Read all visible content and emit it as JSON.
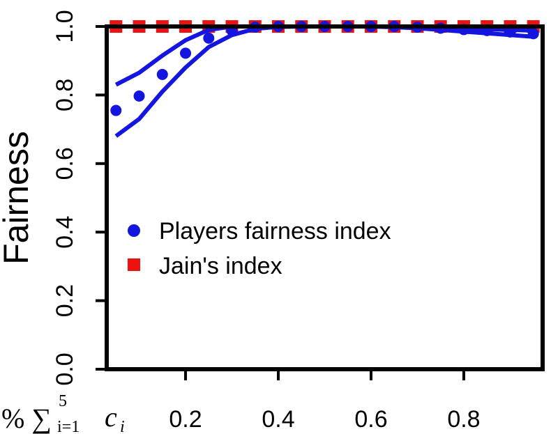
{
  "chart_data": {
    "type": "scatter",
    "title": "",
    "ylabel": "Fairness",
    "xlabel": "% ∑",
    "xlabel_sub": "i=1",
    "xlabel_sup": "5",
    "xlabel_var": "c",
    "xlabel_var_sub": "i",
    "xlim": [
      0.03,
      0.97
    ],
    "ylim": [
      0.0,
      1.0
    ],
    "x_ticks": [
      0.2,
      0.4,
      0.6,
      0.8
    ],
    "x_tick_labels": [
      "0.2",
      "0.4",
      "0.6",
      "0.8"
    ],
    "y_ticks": [
      0.0,
      0.2,
      0.4,
      0.6,
      0.8,
      1.0
    ],
    "y_tick_labels": [
      "0.0",
      "0.2",
      "0.4",
      "0.6",
      "0.8",
      "1.0"
    ],
    "legend_position": "middle-left",
    "colors": {
      "players": "#1515e0",
      "jain": "#ee1111"
    },
    "series": [
      {
        "name": "Players fairness index",
        "marker": "circle",
        "x": [
          0.05,
          0.1,
          0.15,
          0.2,
          0.25,
          0.3,
          0.35,
          0.4,
          0.45,
          0.5,
          0.55,
          0.6,
          0.65,
          0.7,
          0.75,
          0.8,
          0.85,
          0.9,
          0.95
        ],
        "y": [
          0.755,
          0.797,
          0.86,
          0.922,
          0.966,
          0.988,
          0.998,
          1.0,
          1.0,
          1.0,
          1.0,
          1.0,
          1.0,
          0.998,
          0.995,
          0.991,
          0.988,
          0.984,
          0.979
        ]
      },
      {
        "name": "Jain's index",
        "marker": "square",
        "x": [
          0.05,
          0.1,
          0.15,
          0.2,
          0.25,
          0.3,
          0.35,
          0.4,
          0.45,
          0.5,
          0.55,
          0.6,
          0.65,
          0.7,
          0.75,
          0.8,
          0.85,
          0.9,
          0.95
        ],
        "y": [
          1.0,
          1.0,
          1.0,
          1.0,
          1.0,
          1.0,
          1.0,
          1.0,
          1.0,
          1.0,
          1.0,
          1.0,
          1.0,
          1.0,
          1.0,
          1.0,
          1.0,
          1.0,
          1.0
        ]
      }
    ],
    "bands": [
      {
        "of": "Players fairness index",
        "bound": "upper",
        "x": [
          0.05,
          0.1,
          0.15,
          0.2,
          0.25,
          0.3,
          0.35,
          0.4,
          0.45,
          0.5,
          0.55,
          0.6,
          0.65,
          0.7,
          0.75,
          0.8,
          0.85,
          0.9,
          0.95
        ],
        "y": [
          0.83,
          0.865,
          0.915,
          0.96,
          0.99,
          1.0,
          1.0,
          1.0,
          1.0,
          1.0,
          1.0,
          1.0,
          1.0,
          1.0,
          0.998,
          0.995,
          0.992,
          0.99,
          0.988
        ]
      },
      {
        "of": "Players fairness index",
        "bound": "lower",
        "x": [
          0.05,
          0.1,
          0.15,
          0.2,
          0.25,
          0.3,
          0.35,
          0.4,
          0.45,
          0.5,
          0.55,
          0.6,
          0.65,
          0.7,
          0.75,
          0.8,
          0.85,
          0.9,
          0.95
        ],
        "y": [
          0.68,
          0.73,
          0.81,
          0.88,
          0.94,
          0.975,
          0.993,
          0.999,
          1.0,
          1.0,
          1.0,
          1.0,
          0.998,
          0.995,
          0.99,
          0.985,
          0.98,
          0.975,
          0.97
        ]
      }
    ]
  }
}
